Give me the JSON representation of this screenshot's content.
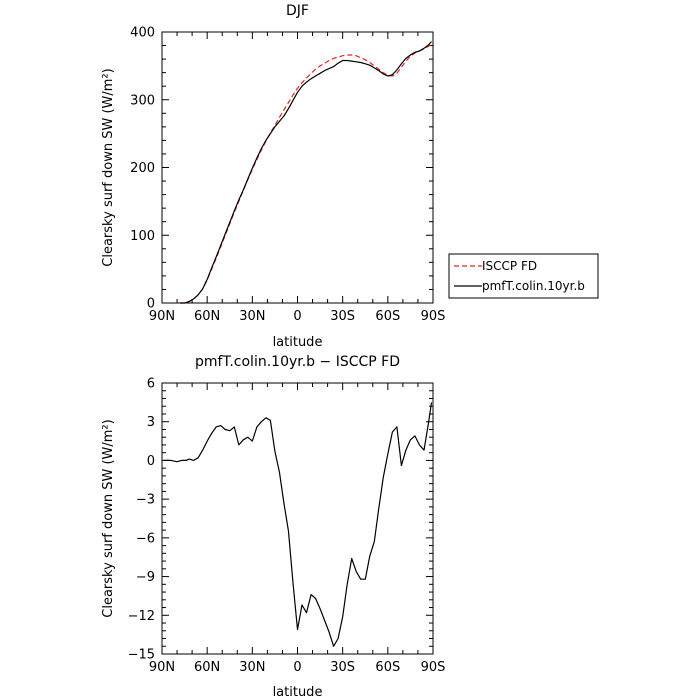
{
  "chart_data": [
    {
      "type": "line",
      "title": "DJF",
      "xlabel": "latitude",
      "ylabel": "Clearsky surf down SW (W/m²)",
      "xlim": [
        90,
        -90
      ],
      "ylim": [
        0,
        400
      ],
      "grid": false,
      "x_ticks": [
        90,
        60,
        30,
        0,
        -30,
        -60,
        -90
      ],
      "x_tick_labels": [
        "90N",
        "60N",
        "30N",
        "0",
        "30S",
        "60S",
        "90S"
      ],
      "y_ticks": [
        0,
        100,
        200,
        300,
        400
      ],
      "y_tick_labels": [
        "0",
        "100",
        "200",
        "300",
        "400"
      ],
      "legend": {
        "placement": "outside-right",
        "entries": [
          "ISCCP FD",
          "pmfT.colin.10yr.b"
        ]
      },
      "x": [
        78,
        75,
        72,
        69,
        66,
        63,
        60,
        57,
        54,
        51,
        48,
        45,
        42,
        39,
        36,
        33,
        30,
        27,
        24,
        21,
        18,
        15,
        12,
        9,
        6,
        3,
        0,
        -3,
        -6,
        -9,
        -12,
        -15,
        -18,
        -21,
        -24,
        -27,
        -30,
        -33,
        -36,
        -39,
        -42,
        -45,
        -48,
        -51,
        -54,
        -57,
        -60,
        -63,
        -66,
        -69,
        -72,
        -75,
        -78,
        -81,
        -84,
        -87,
        -89
      ],
      "series": [
        {
          "name": "ISCCP FD",
          "color": "#e8201e",
          "dash": "dashed",
          "values": [
            0,
            0,
            2,
            6,
            12,
            21,
            34,
            50,
            66,
            83,
            100,
            117,
            134,
            150,
            166,
            182,
            197,
            212,
            226,
            239,
            251,
            262,
            274,
            285,
            296,
            307,
            317,
            325,
            332,
            339,
            345,
            350,
            354,
            358,
            361,
            363,
            365,
            366,
            366,
            365,
            362,
            359,
            355,
            350,
            345,
            340,
            336,
            335,
            339,
            348,
            357,
            364,
            369,
            372,
            375,
            379,
            382
          ]
        },
        {
          "name": "pmfT.colin.10yr.b",
          "color": "#000000",
          "dash": "solid",
          "values": [
            0,
            0,
            2,
            6,
            12,
            21,
            35,
            52,
            68,
            85,
            102,
            119,
            136,
            152,
            167,
            183,
            199,
            214,
            228,
            240,
            250,
            260,
            268,
            276,
            287,
            299,
            311,
            320,
            326,
            331,
            335,
            339,
            343,
            346,
            349,
            354,
            358,
            358,
            357,
            356,
            355,
            353,
            351,
            347,
            343,
            338,
            335,
            337,
            344,
            353,
            361,
            366,
            370,
            372,
            376,
            381,
            386
          ]
        }
      ]
    },
    {
      "type": "line",
      "title": "pmfT.colin.10yr.b − ISCCP FD",
      "xlabel": "latitude",
      "ylabel": "Clearsky surf down SW (W/m²)",
      "xlim": [
        90,
        -90
      ],
      "ylim": [
        -15,
        6
      ],
      "grid": false,
      "x_ticks": [
        90,
        60,
        30,
        0,
        -30,
        -60,
        -90
      ],
      "x_tick_labels": [
        "90N",
        "60N",
        "30N",
        "0",
        "30S",
        "60S",
        "90S"
      ],
      "y_ticks": [
        6,
        3,
        0,
        -3,
        -6,
        -9,
        -12,
        -15
      ],
      "y_tick_labels": [
        "6",
        "3",
        "0",
        "−3",
        "−6",
        "−9",
        "−12",
        "−15"
      ],
      "x": [
        89,
        84,
        80,
        77,
        74,
        72,
        69,
        66,
        63,
        60,
        57,
        54,
        51,
        48,
        45,
        42,
        39,
        36,
        33,
        30,
        27,
        24,
        21,
        18,
        15,
        12,
        9,
        6,
        3,
        0,
        -3,
        -6,
        -9,
        -12,
        -15,
        -18,
        -21,
        -24,
        -27,
        -30,
        -33,
        -36,
        -39,
        -42,
        -45,
        -48,
        -51,
        -54,
        -57,
        -60,
        -63,
        -66,
        -69,
        -72,
        -75,
        -78,
        -81,
        -84,
        -87,
        -89
      ],
      "series": [
        {
          "name": "pmfT.colin.10yr.b − ISCCP FD",
          "color": "#000000",
          "dash": "solid",
          "values": [
            0,
            0,
            -0.1,
            0,
            0,
            0.1,
            0,
            0.2,
            0.8,
            1.5,
            2.1,
            2.6,
            2.7,
            2.4,
            2.3,
            2.6,
            1.2,
            1.6,
            1.8,
            1.5,
            2.6,
            3,
            3.3,
            3.1,
            0.7,
            -0.9,
            -3.3,
            -5.5,
            -9.5,
            -13.1,
            -11.2,
            -11.8,
            -10.4,
            -10.7,
            -11.5,
            -12.4,
            -13.3,
            -14.4,
            -13.8,
            -12.1,
            -9.6,
            -7.6,
            -8.6,
            -9.2,
            -9.2,
            -7.4,
            -6.3,
            -3.7,
            -1.3,
            0.5,
            2.2,
            2.6,
            -0.4,
            0.8,
            1.6,
            1.9,
            1.2,
            0.8,
            2.9,
            4.5
          ]
        }
      ]
    }
  ]
}
